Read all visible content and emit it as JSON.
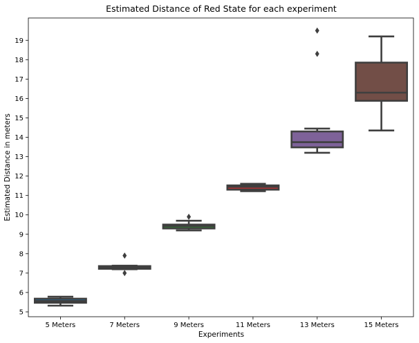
{
  "chart_data": {
    "type": "box",
    "title": "Estimated Distance of Red State for each experiment",
    "xlabel": "Experiments",
    "ylabel": "Estimated Distance in meters",
    "ylim": [
      4.75,
      20.15
    ],
    "yticks": [
      5,
      6,
      7,
      8,
      9,
      10,
      11,
      12,
      13,
      14,
      15,
      16,
      17,
      18,
      19
    ],
    "grid": false,
    "categories": [
      "5 Meters",
      "7 Meters",
      "9 Meters",
      "11 Meters",
      "13 Meters",
      "15 Meters"
    ],
    "boxes": [
      {
        "category": "5 Meters",
        "whisker_low": 5.32,
        "q1": 5.47,
        "median": 5.56,
        "q3": 5.68,
        "whisker_high": 5.78,
        "outliers": [],
        "color": "#3274a1"
      },
      {
        "category": "7 Meters",
        "whisker_low": 7.2,
        "q1": 7.22,
        "median": 7.28,
        "q3": 7.36,
        "whisker_high": 7.38,
        "outliers": [
          7.9,
          7.0
        ],
        "color": "#e1812c"
      },
      {
        "category": "9 Meters",
        "whisker_low": 9.2,
        "q1": 9.3,
        "median": 9.42,
        "q3": 9.5,
        "whisker_high": 9.7,
        "outliers": [
          9.9
        ],
        "color": "#3a923a"
      },
      {
        "category": "11 Meters",
        "whisker_low": 11.22,
        "q1": 11.3,
        "median": 11.45,
        "q3": 11.52,
        "whisker_high": 11.6,
        "outliers": [],
        "color": "#c03d3e"
      },
      {
        "category": "13 Meters",
        "whisker_low": 13.2,
        "q1": 13.48,
        "median": 13.75,
        "q3": 14.3,
        "whisker_high": 14.45,
        "outliers": [
          19.5,
          18.3
        ],
        "color": "#9372b2"
      },
      {
        "category": "15 Meters",
        "whisker_low": 14.35,
        "q1": 15.88,
        "median": 16.3,
        "q3": 17.85,
        "whisker_high": 19.2,
        "outliers": [],
        "color": "#845b53"
      }
    ]
  }
}
